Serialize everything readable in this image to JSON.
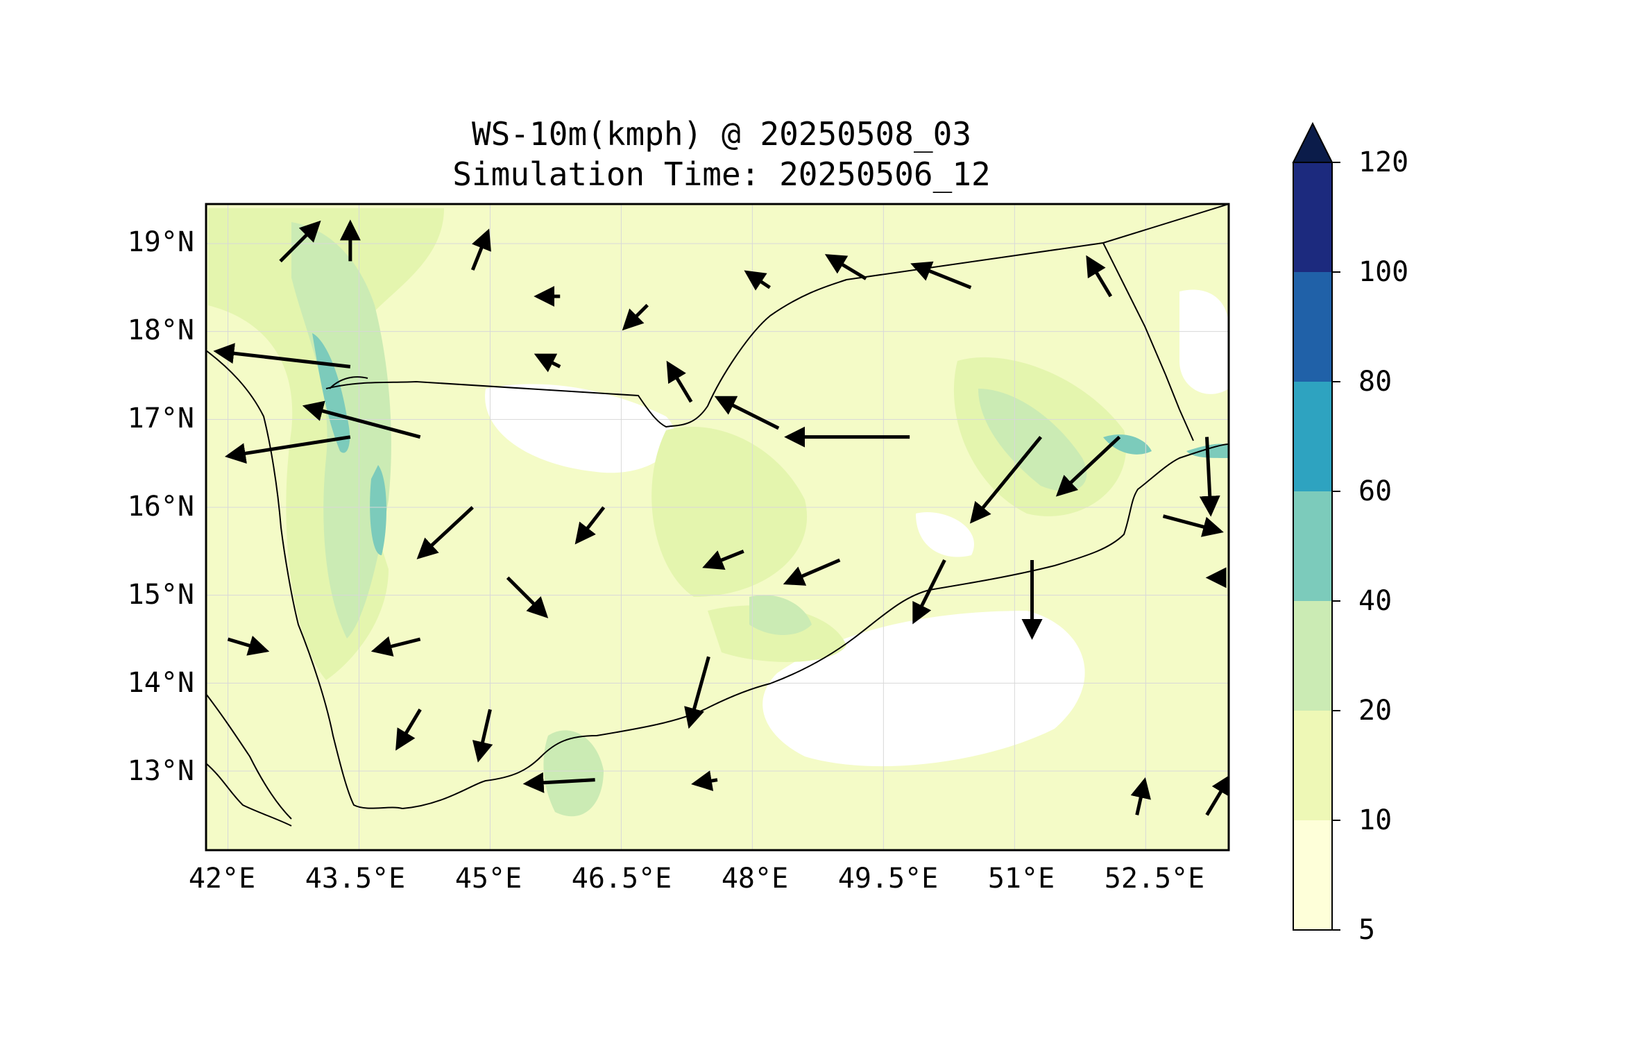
{
  "title": {
    "line1": "WS-10m(kmph) @ 20250508_03",
    "line2": "Simulation Time: 20250506_12"
  },
  "variable": "WS-10m(kmph)",
  "valid_time": "20250508_03",
  "simulation_time": "20250506_12",
  "map": {
    "lon_range": [
      41.75,
      53.45
    ],
    "lat_range": [
      12.1,
      19.45
    ],
    "lon_ticks": [
      "42°E",
      "43.5°E",
      "45°E",
      "46.5°E",
      "48°E",
      "49.5°E",
      "51°E",
      "52.5°E"
    ],
    "lat_ticks": [
      "19°N",
      "18°N",
      "17°N",
      "16°N",
      "15°N",
      "14°N",
      "13°N"
    ],
    "gridlines": true,
    "wind_vectors": [
      {
        "lon": 42.6,
        "lat": 18.8,
        "u": 1.0,
        "v": 1.0
      },
      {
        "lon": 43.4,
        "lat": 18.8,
        "u": 0.0,
        "v": 1.0
      },
      {
        "lon": 44.8,
        "lat": 18.7,
        "u": 0.4,
        "v": 1.0
      },
      {
        "lon": 45.8,
        "lat": 18.4,
        "u": -0.6,
        "v": 0.0
      },
      {
        "lon": 46.8,
        "lat": 18.3,
        "u": -0.6,
        "v": -0.6
      },
      {
        "lon": 48.2,
        "lat": 18.5,
        "u": -0.6,
        "v": 0.4
      },
      {
        "lon": 49.3,
        "lat": 18.6,
        "u": -1.0,
        "v": 0.6
      },
      {
        "lon": 50.5,
        "lat": 18.5,
        "u": -1.5,
        "v": 0.6
      },
      {
        "lon": 52.1,
        "lat": 18.4,
        "u": -0.6,
        "v": 1.0
      },
      {
        "lon": 43.4,
        "lat": 17.6,
        "u": -3.5,
        "v": 0.4
      },
      {
        "lon": 44.2,
        "lat": 16.8,
        "u": -3.0,
        "v": 0.8
      },
      {
        "lon": 43.4,
        "lat": 16.8,
        "u": -3.2,
        "v": -0.5
      },
      {
        "lon": 45.8,
        "lat": 17.6,
        "u": -0.6,
        "v": 0.3
      },
      {
        "lon": 47.3,
        "lat": 17.2,
        "u": -0.6,
        "v": 1.0
      },
      {
        "lon": 48.3,
        "lat": 16.9,
        "u": -1.6,
        "v": 0.8
      },
      {
        "lon": 49.8,
        "lat": 16.8,
        "u": -3.2,
        "v": 0.0
      },
      {
        "lon": 51.3,
        "lat": 16.8,
        "u": -1.8,
        "v": -2.2
      },
      {
        "lon": 52.2,
        "lat": 16.8,
        "u": -1.6,
        "v": -1.5
      },
      {
        "lon": 53.2,
        "lat": 16.8,
        "u": 0.1,
        "v": -2.0
      },
      {
        "lon": 44.8,
        "lat": 16.0,
        "u": -1.4,
        "v": -1.3
      },
      {
        "lon": 46.3,
        "lat": 16.0,
        "u": -0.7,
        "v": -0.9
      },
      {
        "lon": 47.9,
        "lat": 15.5,
        "u": -1.0,
        "v": -0.4
      },
      {
        "lon": 49.0,
        "lat": 15.4,
        "u": -1.4,
        "v": -0.6
      },
      {
        "lon": 50.2,
        "lat": 15.4,
        "u": -0.8,
        "v": -1.6
      },
      {
        "lon": 51.2,
        "lat": 15.4,
        "u": 0.0,
        "v": -2.0
      },
      {
        "lon": 52.7,
        "lat": 15.9,
        "u": 1.5,
        "v": -0.4
      },
      {
        "lon": 53.4,
        "lat": 15.2,
        "u": -0.4,
        "v": 0.0
      },
      {
        "lon": 42.0,
        "lat": 14.5,
        "u": 1.0,
        "v": -0.3
      },
      {
        "lon": 44.2,
        "lat": 14.5,
        "u": -1.2,
        "v": -0.3
      },
      {
        "lon": 45.2,
        "lat": 15.2,
        "u": 1.0,
        "v": -1.0
      },
      {
        "lon": 47.5,
        "lat": 14.3,
        "u": -0.5,
        "v": -1.8
      },
      {
        "lon": 44.2,
        "lat": 13.7,
        "u": -0.6,
        "v": -1.0
      },
      {
        "lon": 45.0,
        "lat": 13.7,
        "u": -0.3,
        "v": -1.3
      },
      {
        "lon": 46.2,
        "lat": 12.9,
        "u": -1.8,
        "v": -0.1
      },
      {
        "lon": 47.6,
        "lat": 12.9,
        "u": -0.6,
        "v": -0.1
      },
      {
        "lon": 52.4,
        "lat": 12.5,
        "u": 0.2,
        "v": 0.9
      },
      {
        "lon": 53.2,
        "lat": 12.5,
        "u": 0.6,
        "v": 1.0
      }
    ]
  },
  "colorbar": {
    "levels": [
      5,
      10,
      20,
      40,
      60,
      80,
      100,
      120
    ],
    "labels": [
      "5",
      "10",
      "20",
      "40",
      "60",
      "80",
      "100",
      "120"
    ],
    "colors": [
      "#feffd9",
      "#eef8b6",
      "#cbebb4",
      "#7ccbbb",
      "#2ea3c0",
      "#2061a8",
      "#1c2a7e"
    ],
    "extend_color": "#0b1c4a",
    "extend": "max"
  },
  "colors": {
    "coastline": "#000000",
    "vector": "#000000",
    "gridline": "#d8d8d8"
  }
}
